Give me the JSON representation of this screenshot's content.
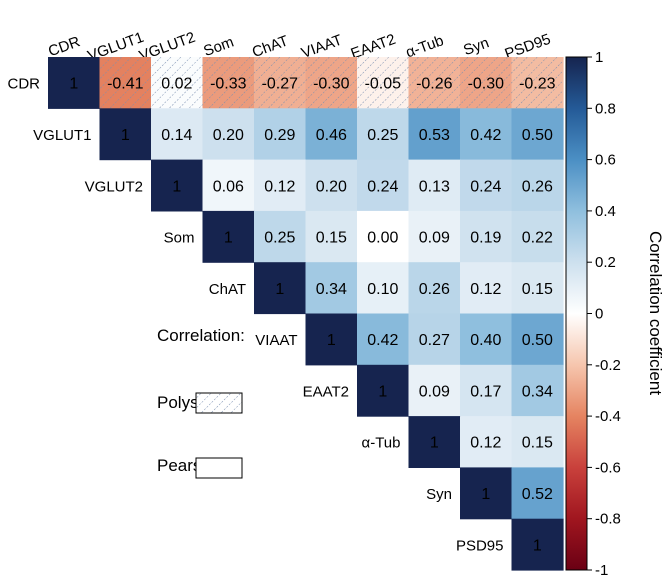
{
  "chart_data": {
    "type": "heatmap",
    "layout": "upper-triangle correlation matrix",
    "variables": [
      "CDR",
      "VGLUT1",
      "VGLUT2",
      "Som",
      "ChAT",
      "VIAAT",
      "EAAT2",
      "α-Tub",
      "Syn",
      "PSD95"
    ],
    "matrix": [
      [
        1,
        -0.41,
        0.02,
        -0.33,
        -0.27,
        -0.3,
        -0.05,
        -0.26,
        -0.3,
        -0.23
      ],
      [
        null,
        1,
        0.14,
        0.2,
        0.29,
        0.46,
        0.25,
        0.53,
        0.42,
        0.5
      ],
      [
        null,
        null,
        1,
        0.06,
        0.12,
        0.2,
        0.24,
        0.13,
        0.24,
        0.26
      ],
      [
        null,
        null,
        null,
        1,
        0.25,
        0.15,
        0.0,
        0.09,
        0.19,
        0.22
      ],
      [
        null,
        null,
        null,
        null,
        1,
        0.34,
        0.1,
        0.26,
        0.12,
        0.15
      ],
      [
        null,
        null,
        null,
        null,
        null,
        1,
        0.42,
        0.27,
        0.4,
        0.5
      ],
      [
        null,
        null,
        null,
        null,
        null,
        null,
        1,
        0.09,
        0.17,
        0.34
      ],
      [
        null,
        null,
        null,
        null,
        null,
        null,
        null,
        1,
        0.12,
        0.15
      ],
      [
        null,
        null,
        null,
        null,
        null,
        null,
        null,
        null,
        1,
        0.52
      ],
      [
        null,
        null,
        null,
        null,
        null,
        null,
        null,
        null,
        null,
        1
      ]
    ],
    "polyserial_row": "CDR",
    "colorbar": {
      "label": "Correlation coefficient",
      "range": [
        -1,
        1
      ],
      "ticks": [
        "1",
        "0.8",
        "0.6",
        "0.4",
        "0.2",
        "0",
        "-0.2",
        "-0.4",
        "-0.6",
        "-0.8",
        "-1"
      ]
    },
    "legend": {
      "title": "Correlation:",
      "items": [
        {
          "label": "Polyserial",
          "pattern": "hatched"
        },
        {
          "label": "Pearson",
          "pattern": "plain"
        }
      ]
    },
    "colors": {
      "diagonal": "#16244f",
      "positive_end": "#16244f",
      "negative_end": "#6a0014",
      "neutral": "#ffffff"
    }
  }
}
